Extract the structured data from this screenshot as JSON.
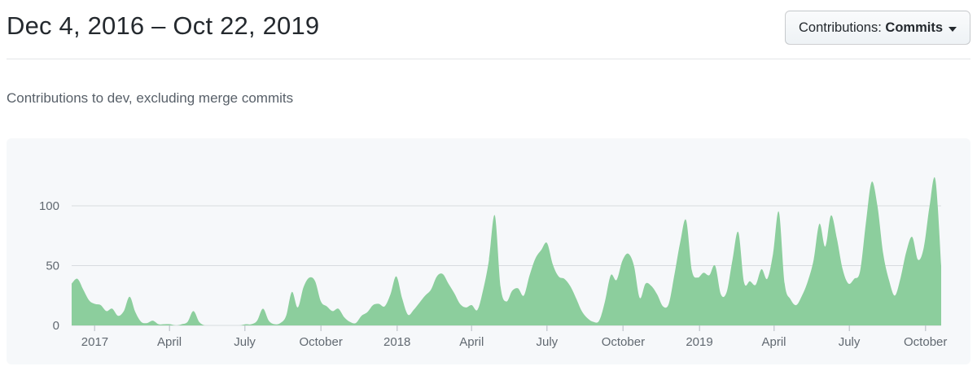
{
  "header": {
    "date_range": "Dec 4, 2016 – Oct 22, 2019",
    "filter_button": {
      "prefix": "Contributions:",
      "value": "Commits",
      "caret": "caret-down"
    }
  },
  "subtitle": "Contributions to dev, excluding merge commits",
  "colors": {
    "area_fill": "#8cce9d",
    "card_background": "#f6f8fa",
    "gridline": "#d8dbdf",
    "tick": "#c9ced4",
    "axis_text": "#616971",
    "title_text": "#24292e",
    "subtitle_text": "#586069"
  },
  "chart_data": {
    "type": "area",
    "title": "Contributions to dev, excluding merge commits",
    "x_unit": "week",
    "x_range_label": "Dec 4, 2016 – Oct 22, 2019",
    "ylim": [
      0,
      130
    ],
    "grid": true,
    "legend": "none",
    "y_ticks": [
      0,
      50,
      100
    ],
    "x_ticks": [
      {
        "label": "2017",
        "week": 4.0
      },
      {
        "label": "April",
        "week": 16.86
      },
      {
        "label": "July",
        "week": 29.86
      },
      {
        "label": "October",
        "week": 43.0
      },
      {
        "label": "2018",
        "week": 56.14
      },
      {
        "label": "April",
        "week": 69.0
      },
      {
        "label": "July",
        "week": 82.0
      },
      {
        "label": "October",
        "week": 95.14
      },
      {
        "label": "2019",
        "week": 108.29
      },
      {
        "label": "April",
        "week": 121.14
      },
      {
        "label": "July",
        "week": 134.14
      },
      {
        "label": "October",
        "week": 147.29
      }
    ],
    "series": [
      {
        "name": "Commits per week",
        "values": [
          35,
          39,
          30,
          21,
          18,
          17,
          12,
          14,
          8,
          12,
          24,
          11,
          3,
          2,
          4,
          1,
          1,
          1,
          0,
          1,
          3,
          12,
          3,
          0,
          0,
          0,
          0,
          0,
          0,
          0,
          1,
          1,
          4,
          14,
          4,
          1,
          2,
          8,
          28,
          15,
          32,
          40,
          37,
          20,
          16,
          12,
          14,
          7,
          3,
          2,
          8,
          11,
          17,
          18,
          16,
          26,
          41,
          23,
          9,
          13,
          19,
          25,
          30,
          41,
          43,
          35,
          27,
          18,
          15,
          17,
          13,
          30,
          55,
          92,
          32,
          20,
          29,
          31,
          25,
          42,
          56,
          63,
          69,
          51,
          41,
          39,
          33,
          23,
          12,
          6,
          3,
          4,
          20,
          42,
          38,
          54,
          60,
          50,
          23,
          35,
          33,
          26,
          16,
          18,
          43,
          70,
          88,
          46,
          40,
          44,
          42,
          50,
          26,
          28,
          55,
          78,
          36,
          37,
          34,
          47,
          39,
          60,
          95,
          35,
          22,
          17,
          25,
          37,
          55,
          85,
          66,
          92,
          73,
          47,
          35,
          39,
          45,
          85,
          120,
          100,
          60,
          38,
          25,
          40,
          62,
          74,
          55,
          65,
          100,
          122,
          50
        ]
      }
    ]
  }
}
